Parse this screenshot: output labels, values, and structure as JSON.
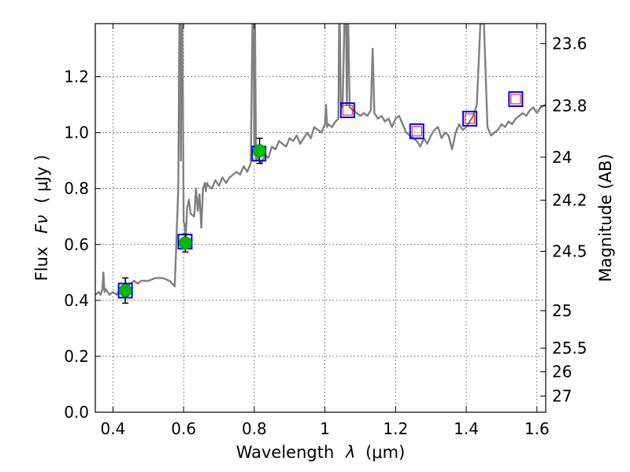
{
  "chart_data": {
    "type": "line",
    "xlabel": "Wavelength",
    "xlabel_symbol": "λ",
    "xlabel_unit": "(μm)",
    "ylabel": "Flux",
    "ylabel_symbol": "Fν",
    "ylabel_unit": "( μJy )",
    "y2label": "Magnitude (AB)",
    "xlim": [
      0.35,
      1.625
    ],
    "ylim": [
      0.0,
      1.39
    ],
    "grid": true,
    "x_ticks": [
      0.4,
      0.6,
      0.8,
      1.0,
      1.2,
      1.4,
      1.6
    ],
    "x_tick_labels": [
      "0.4",
      "0.6",
      "0.8",
      "1",
      "1.2",
      "1.4",
      "1.6"
    ],
    "y_ticks": [
      0.0,
      0.2,
      0.4,
      0.6,
      0.8,
      1.0,
      1.2
    ],
    "y_tick_labels": [
      "0.0",
      "0.2",
      "0.4",
      "0.6",
      "0.8",
      "1.0",
      "1.2"
    ],
    "y2_tick_labels": [
      "23.6",
      "23.8",
      "24",
      "24.2",
      "24.5",
      "25",
      "25.5",
      "26",
      "27"
    ],
    "spectrum_color": "#808080",
    "spectrum": {
      "x": [
        0.35,
        0.36,
        0.365,
        0.37,
        0.373,
        0.376,
        0.38,
        0.39,
        0.4,
        0.41,
        0.42,
        0.43,
        0.44,
        0.45,
        0.46,
        0.47,
        0.48,
        0.5,
        0.52,
        0.54,
        0.56,
        0.575,
        0.585,
        0.588,
        0.59,
        0.592,
        0.594,
        0.596,
        0.598,
        0.6,
        0.603,
        0.606,
        0.61,
        0.615,
        0.62,
        0.63,
        0.635,
        0.64,
        0.645,
        0.65,
        0.655,
        0.66,
        0.663,
        0.666,
        0.67,
        0.68,
        0.69,
        0.7,
        0.71,
        0.72,
        0.73,
        0.74,
        0.75,
        0.76,
        0.77,
        0.78,
        0.79,
        0.795,
        0.798,
        0.8,
        0.802,
        0.805,
        0.81,
        0.82,
        0.83,
        0.84,
        0.85,
        0.86,
        0.87,
        0.88,
        0.89,
        0.9,
        0.91,
        0.92,
        0.93,
        0.94,
        0.95,
        0.96,
        0.97,
        0.98,
        0.99,
        1.0,
        1.003,
        1.006,
        1.01,
        1.02,
        1.03,
        1.038,
        1.04,
        1.042,
        1.045,
        1.05,
        1.055,
        1.06,
        1.062,
        1.064,
        1.066,
        1.07,
        1.08,
        1.09,
        1.1,
        1.11,
        1.12,
        1.13,
        1.135,
        1.14,
        1.15,
        1.16,
        1.17,
        1.18,
        1.19,
        1.2,
        1.21,
        1.22,
        1.23,
        1.24,
        1.25,
        1.26,
        1.27,
        1.28,
        1.29,
        1.3,
        1.31,
        1.32,
        1.33,
        1.34,
        1.35,
        1.36,
        1.37,
        1.38,
        1.39,
        1.4,
        1.41,
        1.42,
        1.43,
        1.44,
        1.45,
        1.46,
        1.47,
        1.48,
        1.49,
        1.5,
        1.51,
        1.52,
        1.53,
        1.54,
        1.55,
        1.56,
        1.57,
        1.58,
        1.59,
        1.6,
        1.61,
        1.625
      ],
      "y": [
        0.42,
        0.43,
        0.42,
        0.44,
        0.5,
        0.43,
        0.44,
        0.42,
        0.43,
        0.42,
        0.44,
        0.43,
        0.45,
        0.46,
        0.47,
        0.46,
        0.47,
        0.47,
        0.48,
        0.48,
        0.47,
        0.45,
        0.8,
        1.39,
        1.39,
        0.9,
        1.39,
        1.39,
        1.1,
        0.68,
        0.67,
        0.62,
        0.73,
        0.76,
        0.71,
        0.7,
        0.8,
        0.72,
        0.78,
        0.66,
        0.8,
        0.82,
        0.79,
        0.82,
        0.81,
        0.8,
        0.83,
        0.81,
        0.84,
        0.82,
        0.84,
        0.85,
        0.86,
        0.85,
        0.88,
        0.86,
        0.89,
        1.39,
        1.39,
        0.92,
        1.39,
        0.9,
        0.91,
        0.89,
        0.92,
        0.91,
        0.95,
        0.94,
        0.97,
        0.96,
        0.95,
        0.98,
        0.97,
        0.99,
        0.96,
        0.98,
        1.0,
        0.98,
        1.02,
        1.01,
        1.0,
        1.03,
        1.1,
        1.02,
        1.03,
        1.02,
        1.04,
        1.05,
        1.39,
        1.39,
        1.1,
        1.09,
        1.39,
        1.39,
        1.1,
        1.39,
        1.39,
        1.09,
        1.08,
        1.07,
        1.06,
        1.07,
        1.06,
        1.08,
        1.3,
        1.07,
        1.05,
        1.06,
        1.04,
        1.05,
        1.02,
        1.05,
        1.06,
        1.03,
        1.0,
        0.99,
        0.98,
        0.97,
        0.95,
        0.98,
        0.96,
        0.99,
        1.01,
        1.02,
        0.98,
        1.0,
        0.99,
        0.94,
        1.0,
        1.03,
        1.01,
        1.02,
        1.04,
        1.06,
        1.1,
        1.39,
        1.39,
        1.02,
        0.99,
        1.0,
        1.01,
        1.03,
        1.02,
        1.04,
        1.03,
        1.05,
        1.06,
        1.07,
        1.06,
        1.08,
        1.09,
        1.07,
        1.09,
        1.1
      ],
      "spike_tops": [
        0.59,
        0.595,
        0.799,
        1.041,
        1.058,
        1.063,
        1.445
      ]
    },
    "photometry_squares": [
      {
        "x": 0.435,
        "y": 0.435,
        "inner": "none"
      },
      {
        "x": 0.604,
        "y": 0.61,
        "inner": "none"
      },
      {
        "x": 0.813,
        "y": 0.925,
        "inner": "none"
      },
      {
        "x": 1.064,
        "y": 1.08,
        "inner": "red"
      },
      {
        "x": 1.26,
        "y": 1.005,
        "inner": "red"
      },
      {
        "x": 1.41,
        "y": 1.05,
        "inner": "red"
      },
      {
        "x": 1.54,
        "y": 1.12,
        "inner": "red"
      }
    ],
    "observed_points": [
      {
        "x": 0.435,
        "y": 0.435,
        "err": 0.045
      },
      {
        "x": 0.605,
        "y": 0.605,
        "err": 0.032
      },
      {
        "x": 0.815,
        "y": 0.935,
        "err": 0.045
      }
    ],
    "colors": {
      "square_edge": "#0000ff",
      "square_inner": "#ff0000",
      "point_fill": "#00bb00",
      "errorbar": "#000000"
    }
  }
}
